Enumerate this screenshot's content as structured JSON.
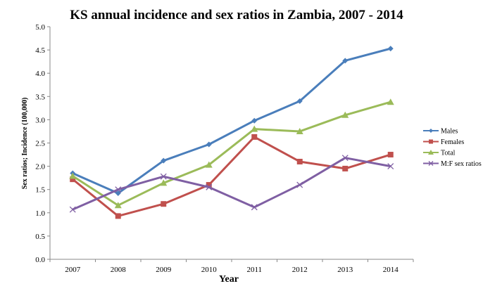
{
  "chart_data": {
    "type": "line",
    "title": "KS annual incidence and sex ratios in Zambia, 2007 - 2014",
    "xlabel": "Year",
    "ylabel": "Sex ratios; Incidence (100,000)",
    "categories": [
      "2007",
      "2008",
      "2009",
      "2010",
      "2011",
      "2012",
      "2013",
      "2014"
    ],
    "ylim": [
      0,
      5
    ],
    "yticks": [
      "0.0",
      "0.5",
      "1.0",
      "1.5",
      "2.0",
      "2.5",
      "3.0",
      "3.5",
      "4.0",
      "4.5",
      "5.0"
    ],
    "grid": false,
    "legend_position": "right",
    "series": [
      {
        "name": "Males",
        "color": "#4a7ebb",
        "marker": "diamond",
        "values": [
          1.85,
          1.42,
          2.12,
          2.47,
          2.98,
          3.4,
          4.27,
          4.53
        ]
      },
      {
        "name": "Females",
        "color": "#c0504d",
        "marker": "square",
        "values": [
          1.72,
          0.93,
          1.19,
          1.6,
          2.63,
          2.1,
          1.95,
          2.25
        ]
      },
      {
        "name": "Total",
        "color": "#9bbb59",
        "marker": "triangle",
        "values": [
          1.79,
          1.16,
          1.64,
          2.03,
          2.8,
          2.75,
          3.1,
          3.38
        ]
      },
      {
        "name": "M:F sex ratios",
        "color": "#7f5fa3",
        "marker": "x",
        "values": [
          1.07,
          1.5,
          1.78,
          1.55,
          1.12,
          1.6,
          2.18,
          2.0
        ]
      }
    ]
  }
}
